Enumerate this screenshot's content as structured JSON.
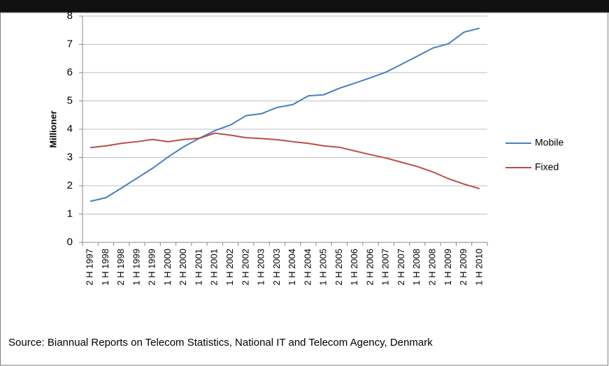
{
  "chart_data": {
    "type": "line",
    "y_label": "Millioner",
    "source": "Source: Biannual Reports on Telecom Statistics, National IT and Telecom Agency, Denmark",
    "categories": [
      "2 H 1997",
      "1 H 1998",
      "2 H 1998",
      "1 H 1999",
      "2 H 1999",
      "1 H 2000",
      "2 H 2000",
      "1 H 2001",
      "2 H 2001",
      "1 H 2002",
      "2 H 2002",
      "1 H 2003",
      "2 H 2003",
      "1 H 2004",
      "2 H 2004",
      "1 H 2005",
      "2 H 2005",
      "1 H 2006",
      "2 H 2006",
      "1 H 2007",
      "2 H 2007",
      "1 H 2008",
      "2 H 2008",
      "1 H 2009",
      "2 H 2009",
      "1 H 2010"
    ],
    "series": [
      {
        "name": "Mobile",
        "color": "#4a7ebb",
        "values": [
          1.45,
          1.58,
          1.92,
          2.27,
          2.62,
          3.02,
          3.38,
          3.68,
          3.95,
          4.15,
          4.48,
          4.55,
          4.77,
          4.87,
          5.18,
          5.22,
          5.45,
          5.63,
          5.82,
          6.02,
          6.3,
          6.58,
          6.87,
          7.02,
          7.43,
          7.57
        ]
      },
      {
        "name": "Fixed",
        "color": "#be4b48",
        "values": [
          3.35,
          3.41,
          3.5,
          3.56,
          3.64,
          3.56,
          3.64,
          3.68,
          3.86,
          3.79,
          3.7,
          3.67,
          3.63,
          3.56,
          3.5,
          3.41,
          3.36,
          3.23,
          3.1,
          2.98,
          2.83,
          2.68,
          2.49,
          2.25,
          2.06,
          1.9
        ]
      }
    ],
    "ylim": [
      0,
      8
    ],
    "yticks": [
      0,
      1,
      2,
      3,
      4,
      5,
      6,
      7,
      8
    ],
    "grid": true,
    "legend": "right"
  }
}
